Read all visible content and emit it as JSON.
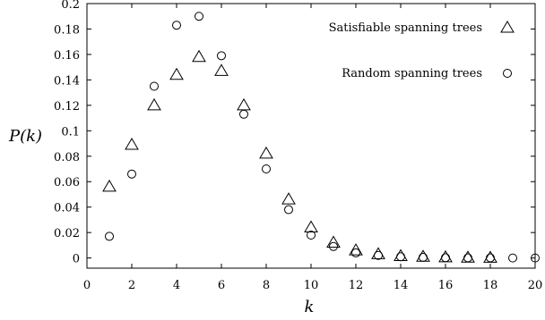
{
  "chart_data": {
    "type": "scatter",
    "xlabel": "k",
    "ylabel": "P(k)",
    "xlim": [
      0,
      20
    ],
    "ylim": [
      -0.008,
      0.2
    ],
    "grid": false,
    "legend_position": "top-right",
    "x_ticks": [
      "0",
      "2",
      "4",
      "6",
      "8",
      "10",
      "12",
      "14",
      "16",
      "18",
      "20"
    ],
    "y_ticks": [
      "0",
      "0.02",
      "0.04",
      "0.06",
      "0.08",
      "0.1",
      "0.12",
      "0.14",
      "0.16",
      "0.18",
      "0.2"
    ],
    "series": [
      {
        "name": "Satisfiable spanning trees",
        "marker": "triangle",
        "x": [
          1,
          2,
          3,
          4,
          5,
          6,
          7,
          8,
          9,
          10,
          11,
          12,
          13,
          14,
          15,
          16,
          17,
          18
        ],
        "y": [
          0.056,
          0.089,
          0.12,
          0.144,
          0.158,
          0.147,
          0.12,
          0.082,
          0.046,
          0.024,
          0.012,
          0.006,
          0.003,
          0.0015,
          0.001,
          0.0005,
          0.0003,
          0.0002
        ]
      },
      {
        "name": "Random spanning trees",
        "marker": "circle",
        "x": [
          1,
          2,
          3,
          4,
          5,
          6,
          7,
          8,
          9,
          10,
          11,
          12,
          13,
          14,
          15,
          16,
          17,
          18,
          19,
          20
        ],
        "y": [
          0.017,
          0.066,
          0.135,
          0.183,
          0.19,
          0.159,
          0.113,
          0.07,
          0.038,
          0.018,
          0.009,
          0.004,
          0.002,
          0.001,
          0.0005,
          0.0002,
          0.0001,
          0.0001,
          0,
          0
        ]
      }
    ]
  }
}
